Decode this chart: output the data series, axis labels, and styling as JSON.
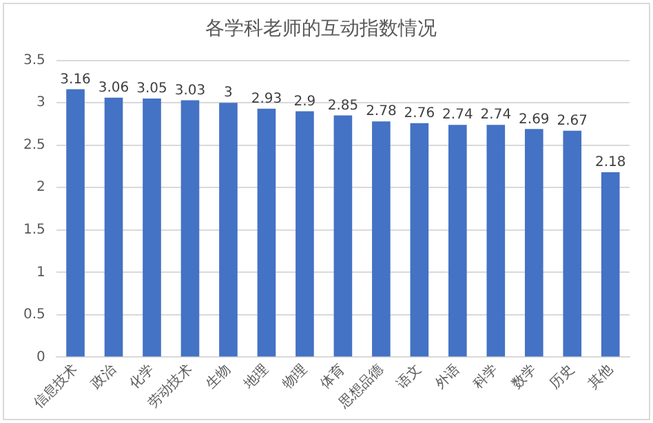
{
  "chart_data": {
    "type": "bar",
    "title": "各学科老师的互动指数情况",
    "categories": [
      "信息技术",
      "政治",
      "化学",
      "劳动技术",
      "生物",
      "地理",
      "物理",
      "体育",
      "思想品德",
      "语文",
      "外语",
      "科学",
      "数学",
      "历史",
      "其他"
    ],
    "values": [
      3.16,
      3.06,
      3.05,
      3.03,
      3,
      2.93,
      2.9,
      2.85,
      2.78,
      2.76,
      2.74,
      2.74,
      2.69,
      2.67,
      2.18
    ],
    "color": "#4472c4",
    "ylim": [
      0,
      3.5
    ],
    "yticks": [
      0,
      0.5,
      1,
      1.5,
      2,
      2.5,
      3,
      3.5
    ],
    "grid": "y",
    "data_labels": true
  }
}
